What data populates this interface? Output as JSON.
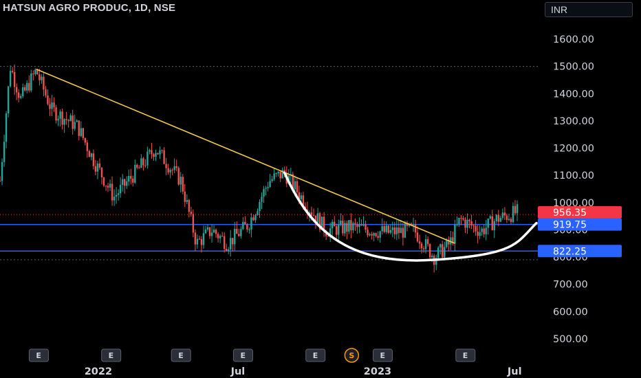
{
  "header": {
    "symbol_title": "HATSUN AGRO PRODUC, 1D, NSE",
    "currency": "INR"
  },
  "colors": {
    "up": "#26a69a",
    "down": "#ef5350",
    "trendline": "#f2c94c",
    "support": "#2962ff",
    "cup": "#ffffff",
    "last_price_bg": "#f23645",
    "level_bg": "#2962ff"
  },
  "chart_data": {
    "type": "candlestick",
    "title": "HATSUN AGRO PRODUC, 1D, NSE",
    "y_axis": {
      "min": 430,
      "max": 1710,
      "ticks": [
        500,
        600,
        700,
        800,
        900,
        1000,
        1100,
        1200,
        1300,
        1400,
        1500,
        1600
      ],
      "tick_labels": [
        "500.00",
        "600.00",
        "700.00",
        "800.00",
        "900.00",
        "1000.00",
        "1100.00",
        "1200.00",
        "1300.00",
        "1400.00",
        "1500.00",
        "1600.00"
      ]
    },
    "x_axis": {
      "tick_labels": [
        "2022",
        "Jul",
        "2023",
        "Jul"
      ]
    },
    "price_path": [
      {
        "x": 0,
        "y": 1080
      },
      {
        "x": 0.02,
        "y": 1500
      },
      {
        "x": 0.04,
        "y": 1380
      },
      {
        "x": 0.07,
        "y": 1485
      },
      {
        "x": 0.1,
        "y": 1340
      },
      {
        "x": 0.15,
        "y": 1280
      },
      {
        "x": 0.18,
        "y": 1160
      },
      {
        "x": 0.22,
        "y": 1020
      },
      {
        "x": 0.28,
        "y": 1150
      },
      {
        "x": 0.3,
        "y": 1200
      },
      {
        "x": 0.35,
        "y": 1080
      },
      {
        "x": 0.38,
        "y": 850
      },
      {
        "x": 0.41,
        "y": 900
      },
      {
        "x": 0.44,
        "y": 850
      },
      {
        "x": 0.48,
        "y": 920
      },
      {
        "x": 0.52,
        "y": 1080
      },
      {
        "x": 0.55,
        "y": 1110
      },
      {
        "x": 0.59,
        "y": 1000
      },
      {
        "x": 0.63,
        "y": 900
      },
      {
        "x": 0.68,
        "y": 910
      },
      {
        "x": 0.75,
        "y": 890
      },
      {
        "x": 0.8,
        "y": 900
      },
      {
        "x": 0.84,
        "y": 800
      },
      {
        "x": 0.87,
        "y": 850
      },
      {
        "x": 0.89,
        "y": 940
      },
      {
        "x": 0.93,
        "y": 895
      },
      {
        "x": 0.96,
        "y": 940
      },
      {
        "x": 1.0,
        "y": 965
      }
    ],
    "last_price": 956.35,
    "last_price_label": "956.35",
    "horizontal_levels": [
      {
        "value": 919.75,
        "label": "919.75"
      },
      {
        "value": 822.25,
        "label": "822.25"
      }
    ],
    "dotted_levels": [
      1500,
      790
    ],
    "trendline": {
      "start": {
        "x": 0.07,
        "y": 1490
      },
      "end": {
        "x": 0.88,
        "y": 850
      }
    },
    "cup_curve": {
      "start": {
        "x": 0.55,
        "y": 1110
      },
      "bottom": {
        "x": 0.84,
        "y": 790
      },
      "end": {
        "x": 1.0,
        "y": 925
      }
    },
    "events": [
      {
        "label": "E",
        "x": 0.075
      },
      {
        "label": "E",
        "x": 0.215
      },
      {
        "label": "E",
        "x": 0.35
      },
      {
        "label": "E",
        "x": 0.47
      },
      {
        "label": "E",
        "x": 0.61
      },
      {
        "label": "S",
        "x": 0.68
      },
      {
        "label": "E",
        "x": 0.74
      },
      {
        "label": "E",
        "x": 0.9
      }
    ],
    "grid": false
  }
}
